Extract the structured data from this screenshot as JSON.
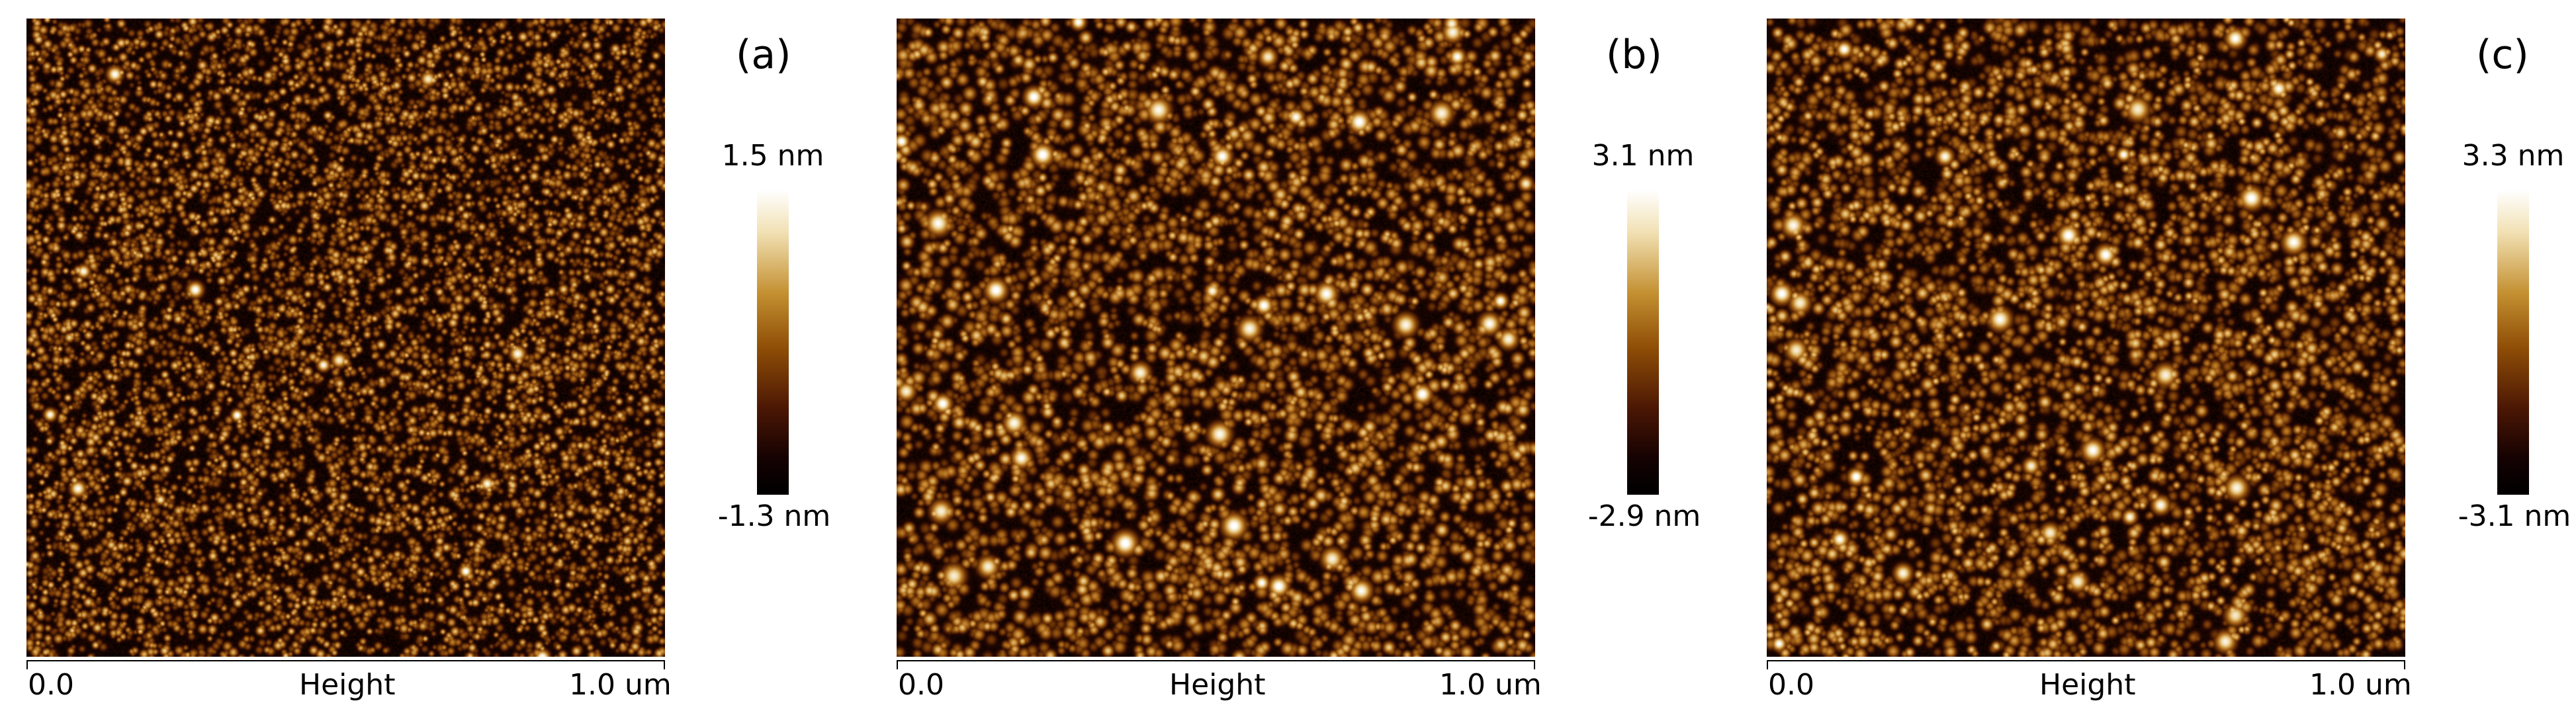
{
  "panels": [
    {
      "label": "(a)",
      "x_start": "0.0",
      "x_end": "1.0 um",
      "channel": "Height",
      "colorbar_max": "1.5 nm",
      "colorbar_min": "-1.3 nm"
    },
    {
      "label": "(b)",
      "x_start": "0.0",
      "x_end": "1.0 um",
      "channel": "Height",
      "colorbar_max": "3.1 nm",
      "colorbar_min": "-2.9 nm"
    },
    {
      "label": "(c)",
      "x_start": "0.0",
      "x_end": "1.0 um",
      "channel": "Height",
      "colorbar_max": "3.3 nm",
      "colorbar_min": "-3.1 nm"
    }
  ],
  "colors": {
    "colormap_high": "#ffffff",
    "colormap_mid": "#8e4d06",
    "colormap_low": "#000000"
  }
}
